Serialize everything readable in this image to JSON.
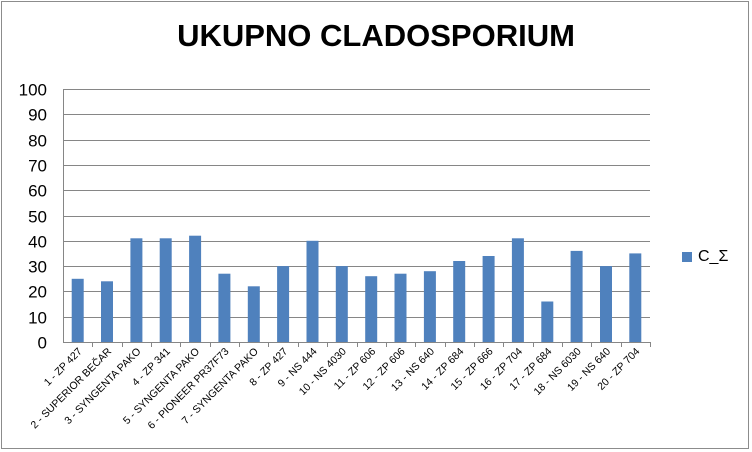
{
  "chart_data": {
    "type": "bar",
    "title": "UKUPNO CLADOSPORIUM",
    "xlabel": "",
    "ylabel": "",
    "ylim": [
      0,
      100
    ],
    "yticks": [
      0,
      10,
      20,
      30,
      40,
      50,
      60,
      70,
      80,
      90,
      100
    ],
    "grid": true,
    "legend_position": "right",
    "categories": [
      "1 - ZP 427",
      "2 - SUPERIOR BEČAR",
      "3 - SYNGENTA PAKO",
      "4 - ZP 341",
      "5 - SYNGENTA PAKO",
      "6 - PIONEER PR37F73",
      "7 - SYNGENTA PAKO",
      "8 - ZP 427",
      "9 - NS 444",
      "10 - NS 4030",
      "11 - ZP 606",
      "12 - ZP 606",
      "13 - NS 640",
      "14 - ZP 684",
      "15 - ZP 666",
      "16 - ZP 704",
      "17 - ZP 684",
      "18 - NS 6030",
      "19 - NS 640",
      "20 - ZP 704"
    ],
    "series": [
      {
        "name": "C_Σ",
        "color": "#4f81bd",
        "values": [
          25,
          24,
          41,
          41,
          42,
          27,
          22,
          30,
          40,
          30,
          26,
          27,
          28,
          32,
          34,
          41,
          16,
          36,
          30,
          35
        ]
      }
    ]
  }
}
